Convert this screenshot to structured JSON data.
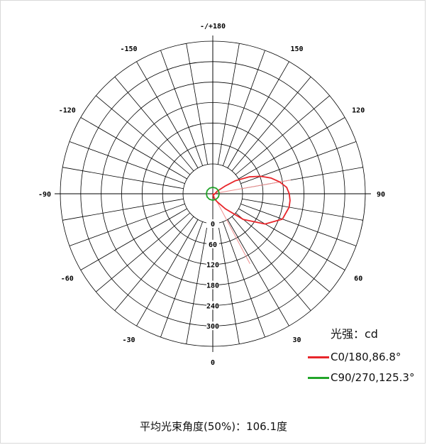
{
  "chart_data": {
    "type": "polar",
    "angle_labels": [
      {
        "deg": 0,
        "text": "-/+180"
      },
      {
        "deg": 30,
        "text": "150"
      },
      {
        "deg": 60,
        "text": "120"
      },
      {
        "deg": 90,
        "text": "90"
      },
      {
        "deg": 120,
        "text": "60"
      },
      {
        "deg": 150,
        "text": "30"
      },
      {
        "deg": 180,
        "text": "0"
      },
      {
        "deg": -30,
        "text": "-150"
      },
      {
        "deg": -60,
        "text": "-120"
      },
      {
        "deg": -90,
        "text": "-90"
      },
      {
        "deg": -120,
        "text": "-60"
      },
      {
        "deg": -150,
        "text": "-30"
      }
    ],
    "radial_ticks": [
      0,
      60,
      120,
      180,
      240,
      300
    ],
    "radial_max": 360,
    "unit_label": "光强：cd",
    "series": [
      {
        "name": "C0/180,86.8°",
        "color": "#e8262b",
        "points": [
          [
            180,
            0
          ],
          [
            165,
            10
          ],
          [
            150,
            20
          ],
          [
            140,
            40
          ],
          [
            130,
            90
          ],
          [
            120,
            150
          ],
          [
            110,
            190
          ],
          [
            100,
            200
          ],
          [
            95,
            200
          ],
          [
            90,
            197
          ],
          [
            85,
            190
          ],
          [
            80,
            172
          ],
          [
            75,
            150
          ],
          [
            70,
            122
          ],
          [
            65,
            90
          ],
          [
            60,
            52
          ],
          [
            58,
            30
          ],
          [
            60,
            10
          ],
          [
            120,
            3
          ],
          [
            180,
            0
          ]
        ]
      },
      {
        "name": "C90/270,125.3°",
        "color": "#22a52a",
        "points": [
          [
            0,
            13
          ],
          [
            30,
            13
          ],
          [
            60,
            13
          ],
          [
            90,
            13
          ],
          [
            120,
            13
          ],
          [
            150,
            13
          ],
          [
            180,
            13
          ],
          [
            210,
            13
          ],
          [
            240,
            13
          ],
          [
            270,
            13
          ],
          [
            300,
            13
          ],
          [
            330,
            13
          ],
          [
            360,
            13
          ]
        ]
      }
    ],
    "secondary_rays": [
      {
        "color": "#f09090",
        "angles": [
          80,
          152
        ]
      }
    ]
  },
  "footer": {
    "beam_angle_text": "平均光束角度(50%)：106.1度"
  }
}
